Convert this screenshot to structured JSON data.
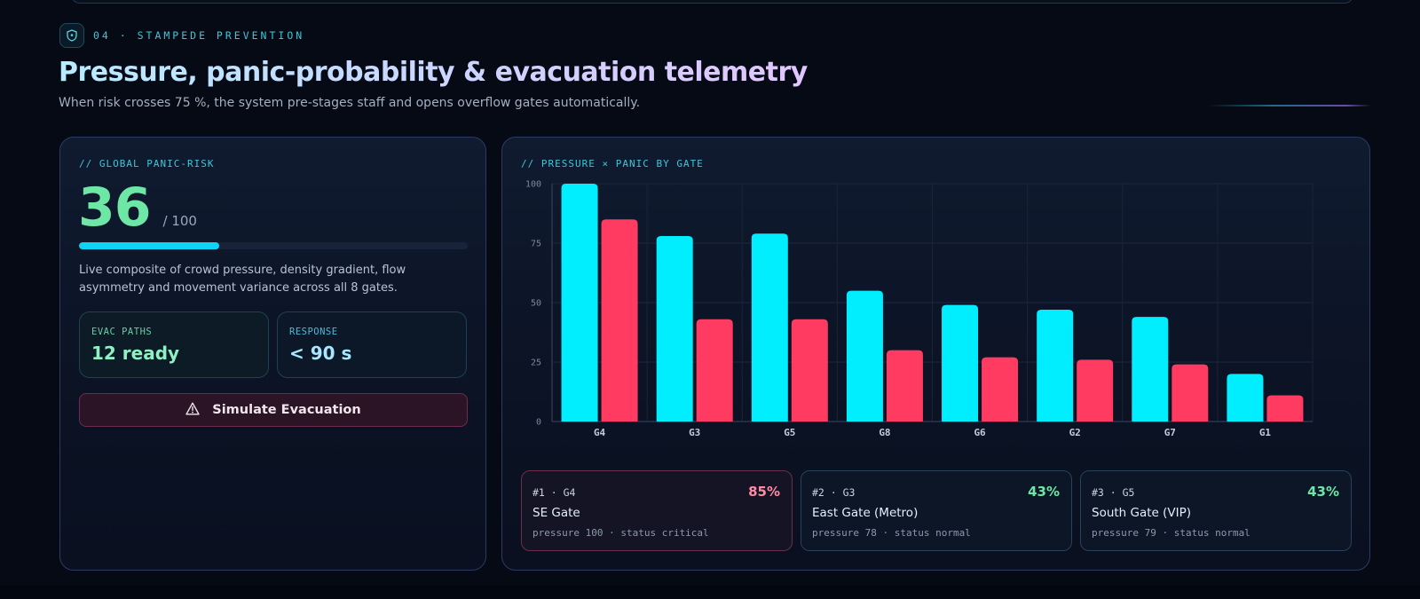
{
  "section": {
    "eyebrow": "04 · STAMPEDE PREVENTION",
    "icon": "shield-icon",
    "title": "Pressure, panic-probability & evacuation telemetry",
    "subtitle": "When risk crosses 75 %, the system pre-stages staff and opens overflow gates automatically."
  },
  "global_risk": {
    "label": "// GLOBAL PANIC-RISK",
    "score": "36",
    "max_label": "/ 100",
    "progress_fraction": 0.36,
    "description": "Live composite of crowd pressure, density gradient, flow asymmetry and movement variance across all 8 gates.",
    "stats": [
      {
        "label": "EVAC PATHS",
        "value": "12 ready"
      },
      {
        "label": "RESPONSE",
        "value": "< 90 s"
      }
    ],
    "button": {
      "label": "Simulate Evacuation",
      "icon": "warning-triangle-icon"
    }
  },
  "chart_panel": {
    "label": "// PRESSURE × PANIC BY GATE"
  },
  "chart_data": {
    "type": "bar",
    "title": "",
    "xlabel": "",
    "ylabel": "",
    "categories": [
      "G4",
      "G3",
      "G5",
      "G8",
      "G6",
      "G2",
      "G7",
      "G1"
    ],
    "ylim": [
      0,
      100
    ],
    "yticks": [
      0,
      25,
      50,
      75,
      100
    ],
    "grid": true,
    "series": [
      {
        "values": [
          100,
          78,
          79,
          55,
          49,
          47,
          44,
          20
        ],
        "color": "#00eeff"
      },
      {
        "values": [
          85,
          43,
          43,
          30,
          27,
          26,
          24,
          11
        ],
        "color": "#ff3b62"
      }
    ]
  },
  "top_gates": [
    {
      "rank_id": "#1 · G4",
      "pct": "85%",
      "name": "SE Gate",
      "meta": "pressure 100 · status critical",
      "status": "critical"
    },
    {
      "rank_id": "#2 · G3",
      "pct": "43%",
      "name": "East Gate (Metro)",
      "meta": "pressure 78 · status normal",
      "status": "normal"
    },
    {
      "rank_id": "#3 · G5",
      "pct": "43%",
      "name": "South Gate (VIP)",
      "meta": "pressure 79 · status normal",
      "status": "normal"
    }
  ],
  "colors": {
    "accent_cyan": "#00eeff",
    "accent_red": "#ff3b62",
    "accent_green": "#6ee6a6",
    "background": "#050a14"
  }
}
